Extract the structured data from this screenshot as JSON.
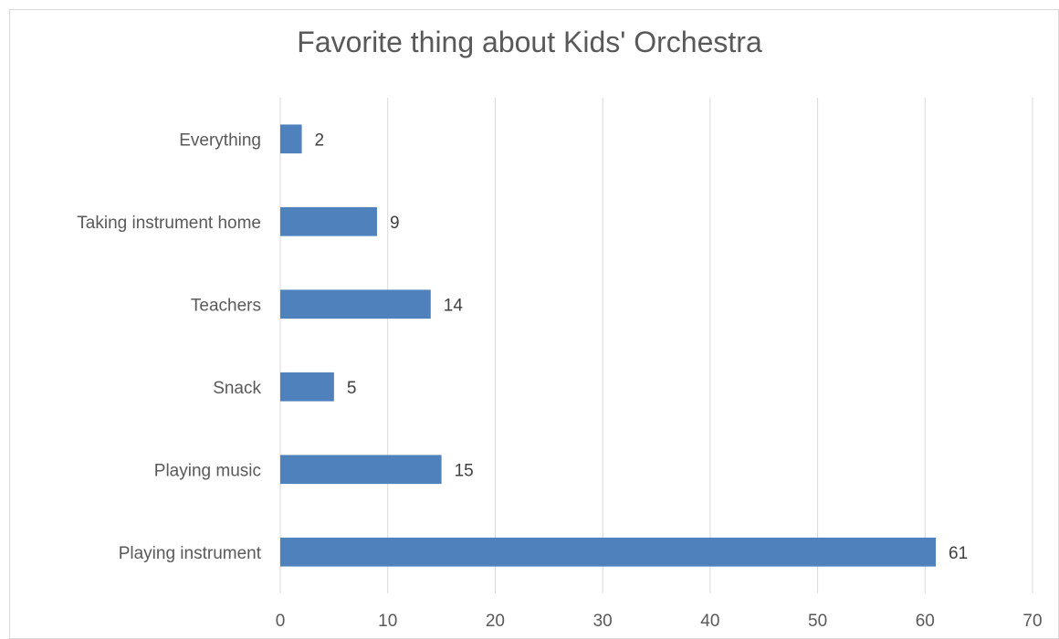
{
  "chart_data": {
    "type": "bar",
    "orientation": "horizontal",
    "title": "Favorite thing about Kids' Orchestra",
    "categories": [
      "Playing instrument",
      "Playing music",
      "Snack",
      "Teachers",
      "Taking instrument home",
      "Everything"
    ],
    "values": [
      61,
      15,
      5,
      14,
      9,
      2
    ],
    "xlim": [
      0,
      70
    ],
    "xticks": [
      0,
      10,
      20,
      30,
      40,
      50,
      60,
      70
    ],
    "grid": true,
    "legend": false,
    "data_labels": true,
    "bar_color": "#4f81bd",
    "grid_color": "#d9d9d9"
  }
}
